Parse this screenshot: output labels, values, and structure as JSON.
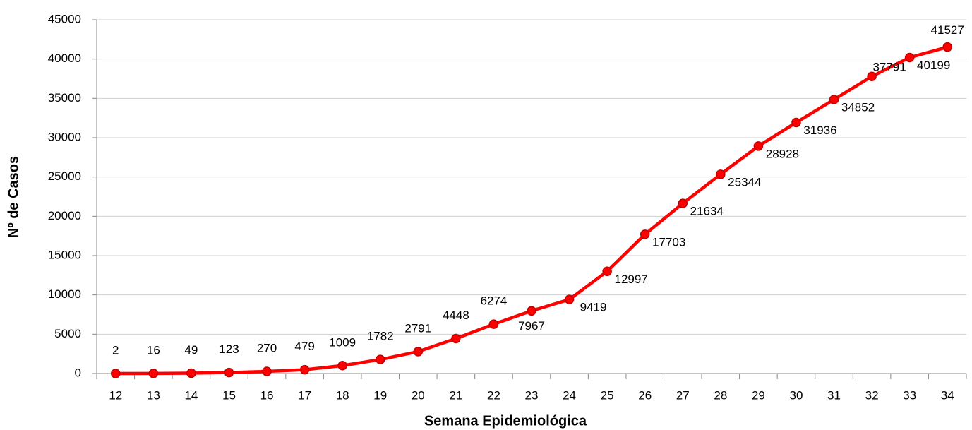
{
  "chart_data": {
    "type": "line",
    "x_label": "Semana Epidemiológica",
    "y_label": "Nº de Casos",
    "categories": [
      "12",
      "13",
      "14",
      "15",
      "16",
      "17",
      "18",
      "19",
      "20",
      "21",
      "22",
      "23",
      "24",
      "25",
      "26",
      "27",
      "28",
      "29",
      "30",
      "31",
      "32",
      "33",
      "34"
    ],
    "series": [
      {
        "name": "Nº de Casos",
        "color": "#ff0000",
        "values": [
          2,
          16,
          49,
          123,
          270,
          479,
          1009,
          1782,
          2791,
          4448,
          6274,
          7967,
          9419,
          12997,
          17703,
          21634,
          25344,
          28928,
          31936,
          34852,
          37791,
          40199,
          41527
        ]
      }
    ],
    "ylim": [
      0,
      45000
    ],
    "yticks": [
      0,
      5000,
      10000,
      15000,
      20000,
      25000,
      30000,
      35000,
      40000,
      45000
    ],
    "grid": true
  }
}
